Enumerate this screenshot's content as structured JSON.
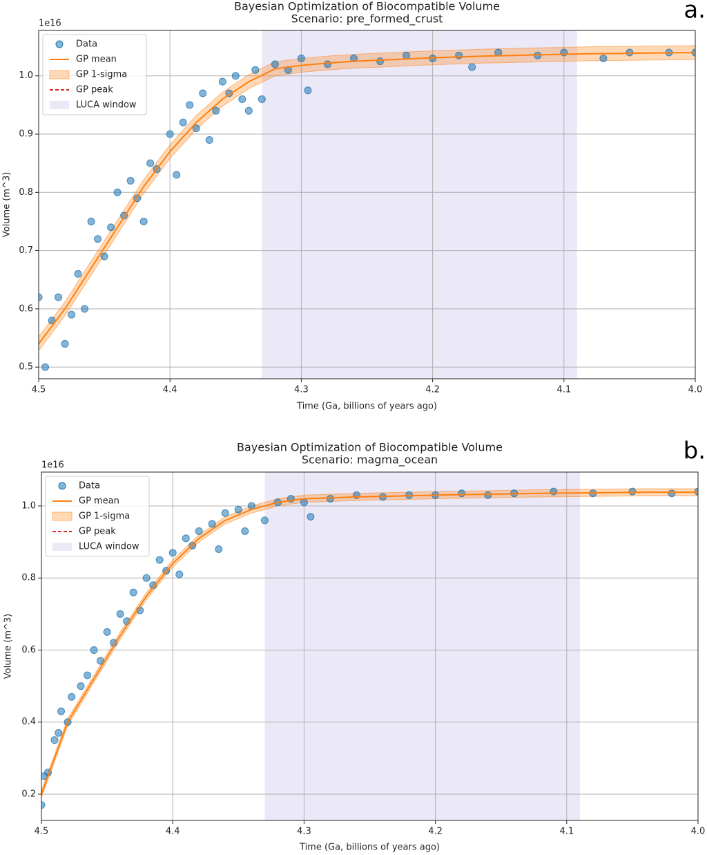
{
  "chart_data": [
    {
      "type": "scatter",
      "title": "Bayesian Optimization of Biocompatible Volume",
      "subtitle": "Scenario: pre_formed_crust",
      "panel_label": "a.",
      "xlabel": "Time (Ga, billions of years ago)",
      "ylabel": "Volume (m^3)",
      "offset_text": "1e16",
      "xlim": [
        4.5,
        4.0
      ],
      "ylim": [
        0.48,
        1.078
      ],
      "xticks": [
        4.5,
        4.4,
        4.3,
        4.2,
        4.1,
        {
          "value": 4,
          "label": "4.0"
        }
      ],
      "yticks": [
        0.5,
        0.6,
        0.7,
        0.8,
        0.9,
        {
          "value": 1,
          "label": "1.0"
        }
      ],
      "grid": true,
      "legend": "upper left",
      "series": [
        {
          "name": "LUCA window",
          "type": "span",
          "color": "#9a8fd6",
          "x": [
            4.33,
            4.09
          ]
        },
        {
          "name": "GP 1-sigma",
          "type": "band",
          "color": "#ff7f0e",
          "x": [
            4.5,
            4.48,
            4.46,
            4.44,
            4.42,
            4.4,
            4.38,
            4.36,
            4.34,
            4.32,
            4.3,
            4.28,
            4.26,
            4.24,
            4.22,
            4.2,
            4.16,
            4.12,
            4.08,
            4.04,
            4.0
          ],
          "lower": [
            0.528,
            0.588,
            0.658,
            0.728,
            0.798,
            0.858,
            0.908,
            0.948,
            0.978,
            1.0,
            1.006,
            1.01,
            1.013,
            1.015,
            1.017,
            1.019,
            1.022,
            1.024,
            1.026,
            1.027,
            1.028
          ],
          "upper": [
            0.552,
            0.612,
            0.682,
            0.752,
            0.822,
            0.882,
            0.932,
            0.972,
            1.002,
            1.024,
            1.03,
            1.034,
            1.037,
            1.039,
            1.041,
            1.043,
            1.046,
            1.048,
            1.05,
            1.051,
            1.052
          ]
        },
        {
          "name": "Data",
          "type": "scatter",
          "color": "#1f77b4",
          "x": [
            4.5,
            4.495,
            4.49,
            4.485,
            4.48,
            4.475,
            4.47,
            4.465,
            4.46,
            4.455,
            4.45,
            4.445,
            4.44,
            4.435,
            4.43,
            4.425,
            4.42,
            4.415,
            4.41,
            4.4,
            4.395,
            4.39,
            4.385,
            4.38,
            4.375,
            4.37,
            4.365,
            4.36,
            4.355,
            4.35,
            4.345,
            4.34,
            4.335,
            4.33,
            4.32,
            4.31,
            4.3,
            4.295,
            4.28,
            4.26,
            4.24,
            4.22,
            4.2,
            4.18,
            4.17,
            4.15,
            4.12,
            4.1,
            4.07,
            4.05,
            4.02,
            4.0
          ],
          "values": [
            0.62,
            0.5,
            0.58,
            0.62,
            0.54,
            0.59,
            0.66,
            0.6,
            0.75,
            0.72,
            0.69,
            0.74,
            0.8,
            0.76,
            0.82,
            0.79,
            0.75,
            0.85,
            0.84,
            0.9,
            0.83,
            0.92,
            0.95,
            0.91,
            0.97,
            0.89,
            0.94,
            0.99,
            0.97,
            1.0,
            0.96,
            0.94,
            1.01,
            0.96,
            1.02,
            1.01,
            1.03,
            0.975,
            1.02,
            1.03,
            1.025,
            1.035,
            1.03,
            1.035,
            1.015,
            1.04,
            1.035,
            1.04,
            1.03,
            1.04,
            1.04,
            1.04
          ]
        },
        {
          "name": "GP mean",
          "type": "line",
          "color": "#ff7f0e",
          "x": [
            4.5,
            4.48,
            4.46,
            4.44,
            4.42,
            4.4,
            4.38,
            4.36,
            4.34,
            4.32,
            4.3,
            4.28,
            4.26,
            4.24,
            4.22,
            4.2,
            4.16,
            4.12,
            4.08,
            4.04,
            4.0
          ],
          "values": [
            0.54,
            0.6,
            0.67,
            0.74,
            0.81,
            0.87,
            0.92,
            0.96,
            0.99,
            1.012,
            1.018,
            1.022,
            1.025,
            1.027,
            1.029,
            1.031,
            1.034,
            1.036,
            1.038,
            1.039,
            1.04
          ]
        },
        {
          "name": "GP peak",
          "type": "dashed",
          "color": "#d62728"
        }
      ]
    },
    {
      "type": "scatter",
      "title": "Bayesian Optimization of Biocompatible Volume",
      "subtitle": "Scenario: magma_ocean",
      "panel_label": "b.",
      "xlabel": "Time (Ga, billions of years ago)",
      "ylabel": "Volume (m^3)",
      "offset_text": "1e16",
      "xlim": [
        4.5,
        4.0
      ],
      "ylim": [
        0.127,
        1.094
      ],
      "xticks": [
        4.5,
        4.4,
        4.3,
        4.2,
        4.1,
        {
          "value": 4,
          "label": "4.0"
        }
      ],
      "yticks": [
        0.2,
        0.4,
        0.6,
        0.8,
        {
          "value": 1,
          "label": "1.0"
        }
      ],
      "grid": true,
      "legend": "upper left",
      "series": [
        {
          "name": "LUCA window",
          "type": "span",
          "color": "#9a8fd6",
          "x": [
            4.33,
            4.09
          ]
        },
        {
          "name": "GP 1-sigma",
          "type": "band",
          "color": "#ff7f0e",
          "x": [
            4.5,
            4.49,
            4.48,
            4.46,
            4.44,
            4.42,
            4.4,
            4.38,
            4.36,
            4.34,
            4.32,
            4.3,
            4.26,
            4.2,
            4.12,
            4.04,
            4.0
          ],
          "lower": [
            0.19,
            0.29,
            0.39,
            0.51,
            0.63,
            0.74,
            0.83,
            0.9,
            0.95,
            0.98,
            1.0,
            1.01,
            1.015,
            1.02,
            1.025,
            1.028,
            1.028
          ],
          "upper": [
            0.21,
            0.31,
            0.41,
            0.53,
            0.65,
            0.76,
            0.85,
            0.92,
            0.97,
            1.0,
            1.02,
            1.03,
            1.035,
            1.04,
            1.045,
            1.048,
            1.048
          ]
        },
        {
          "name": "Data",
          "type": "scatter",
          "color": "#1f77b4",
          "x": [
            4.5,
            4.498,
            4.495,
            4.49,
            4.487,
            4.485,
            4.48,
            4.477,
            4.47,
            4.465,
            4.46,
            4.455,
            4.45,
            4.445,
            4.44,
            4.435,
            4.43,
            4.425,
            4.42,
            4.415,
            4.41,
            4.405,
            4.4,
            4.395,
            4.39,
            4.385,
            4.38,
            4.37,
            4.365,
            4.36,
            4.35,
            4.345,
            4.34,
            4.33,
            4.32,
            4.31,
            4.3,
            4.295,
            4.28,
            4.26,
            4.24,
            4.22,
            4.2,
            4.18,
            4.16,
            4.14,
            4.11,
            4.08,
            4.05,
            4.02,
            4.0
          ],
          "values": [
            0.17,
            0.25,
            0.26,
            0.35,
            0.37,
            0.43,
            0.4,
            0.47,
            0.5,
            0.53,
            0.6,
            0.57,
            0.65,
            0.62,
            0.7,
            0.68,
            0.76,
            0.71,
            0.8,
            0.78,
            0.85,
            0.82,
            0.87,
            0.81,
            0.91,
            0.89,
            0.93,
            0.95,
            0.88,
            0.98,
            0.99,
            0.93,
            1.0,
            0.96,
            1.01,
            1.02,
            1.01,
            0.97,
            1.02,
            1.03,
            1.025,
            1.03,
            1.03,
            1.035,
            1.03,
            1.035,
            1.04,
            1.035,
            1.04,
            1.035,
            1.04
          ]
        },
        {
          "name": "GP mean",
          "type": "line",
          "color": "#ff7f0e",
          "x": [
            4.5,
            4.49,
            4.48,
            4.46,
            4.44,
            4.42,
            4.4,
            4.38,
            4.36,
            4.34,
            4.32,
            4.3,
            4.26,
            4.2,
            4.12,
            4.04,
            4.0
          ],
          "values": [
            0.2,
            0.3,
            0.4,
            0.52,
            0.64,
            0.75,
            0.84,
            0.91,
            0.96,
            0.99,
            1.01,
            1.02,
            1.025,
            1.03,
            1.035,
            1.038,
            1.038
          ]
        },
        {
          "name": "GP peak",
          "type": "dashed",
          "color": "#d62728"
        }
      ]
    }
  ]
}
